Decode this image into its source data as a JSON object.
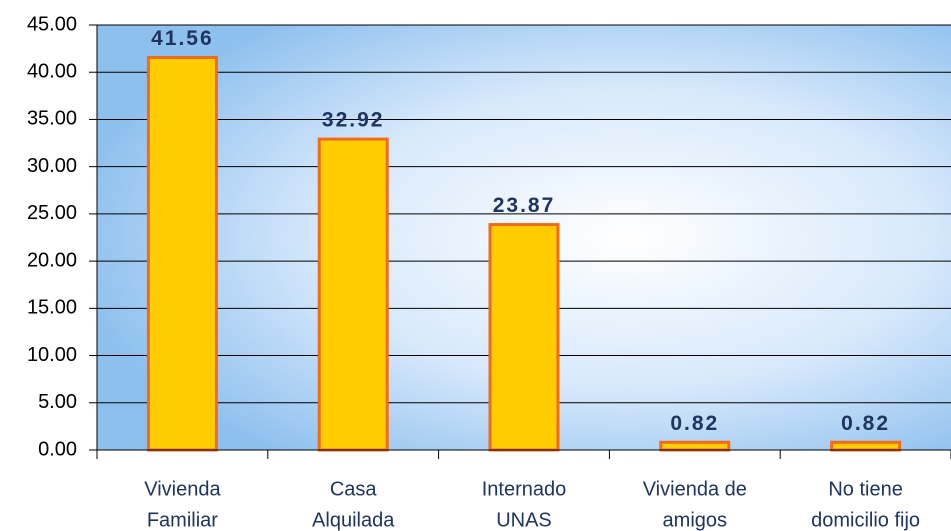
{
  "chart_data": {
    "type": "bar",
    "categories": [
      [
        "Vivienda",
        "Familiar"
      ],
      [
        "Casa",
        "Alquilada"
      ],
      [
        "Internado",
        "UNAS"
      ],
      [
        "Vivienda de",
        "amigos"
      ],
      [
        "No tiene",
        "domicilio fijo"
      ]
    ],
    "values": [
      41.56,
      32.92,
      23.87,
      0.82,
      0.82
    ],
    "color": "#ffcc00",
    "ylim": [
      0,
      45
    ],
    "yticks": [
      {
        "value": 0,
        "label": "0.00"
      },
      {
        "value": 5,
        "label": "5.00"
      },
      {
        "value": 10,
        "label": "10.00"
      },
      {
        "value": 15,
        "label": "15.00"
      },
      {
        "value": 20,
        "label": "20.00"
      },
      {
        "value": 25,
        "label": "25.00"
      },
      {
        "value": 30,
        "label": "30.00"
      },
      {
        "value": 35,
        "label": "35.00"
      },
      {
        "value": 40,
        "label": "40.00"
      },
      {
        "value": 45,
        "label": "45.00"
      }
    ],
    "grid": true
  }
}
